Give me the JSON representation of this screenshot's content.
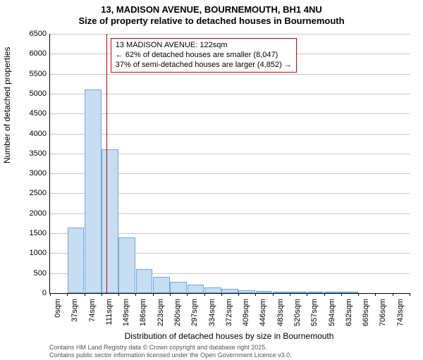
{
  "title_line1": "13, MADISON AVENUE, BOURNEMOUTH, BH1 4NU",
  "title_line2": "Size of property relative to detached houses in Bournemouth",
  "chart": {
    "type": "histogram",
    "ylabel": "Number of detached properties",
    "xlabel": "Distribution of detached houses by size in Bournemouth",
    "ylim": [
      0,
      6500
    ],
    "ytick_step": 500,
    "yticks": [
      0,
      500,
      1000,
      1500,
      2000,
      2500,
      3000,
      3500,
      4000,
      4500,
      5000,
      5500,
      6000,
      6500
    ],
    "x_categories": [
      "0sqm",
      "37sqm",
      "74sqm",
      "111sqm",
      "149sqm",
      "186sqm",
      "223sqm",
      "260sqm",
      "297sqm",
      "334sqm",
      "372sqm",
      "409sqm",
      "446sqm",
      "483sqm",
      "520sqm",
      "557sqm",
      "594sqm",
      "632sqm",
      "669sqm",
      "706sqm",
      "743sqm"
    ],
    "values": [
      0,
      1650,
      5100,
      3600,
      1400,
      600,
      410,
      280,
      210,
      150,
      110,
      70,
      50,
      35,
      25,
      18,
      12,
      9,
      6,
      4,
      3
    ],
    "bar_fill": "#c7ddf2",
    "bar_stroke": "#6fa8dc",
    "background_color": "#ffffff",
    "grid_color": "#c8c8c8",
    "marker_line_x_sqm": 122,
    "marker_line_color": "#c00000",
    "annotation": {
      "line1": "13 MADISON AVENUE: 122sqm",
      "line2": "← 62% of detached houses are smaller (8,047)",
      "line3": "37% of semi-detached houses are larger (4,852) →",
      "border_color": "#c00000",
      "bg_color": "#ffffff"
    },
    "title_fontsize": 13,
    "label_fontsize": 12,
    "tick_fontsize": 11
  },
  "attribution_line1": "Contains HM Land Registry data © Crown copyright and database right 2025.",
  "attribution_line2": "Contains public sector information licensed under the Open Government Licence v3.0."
}
